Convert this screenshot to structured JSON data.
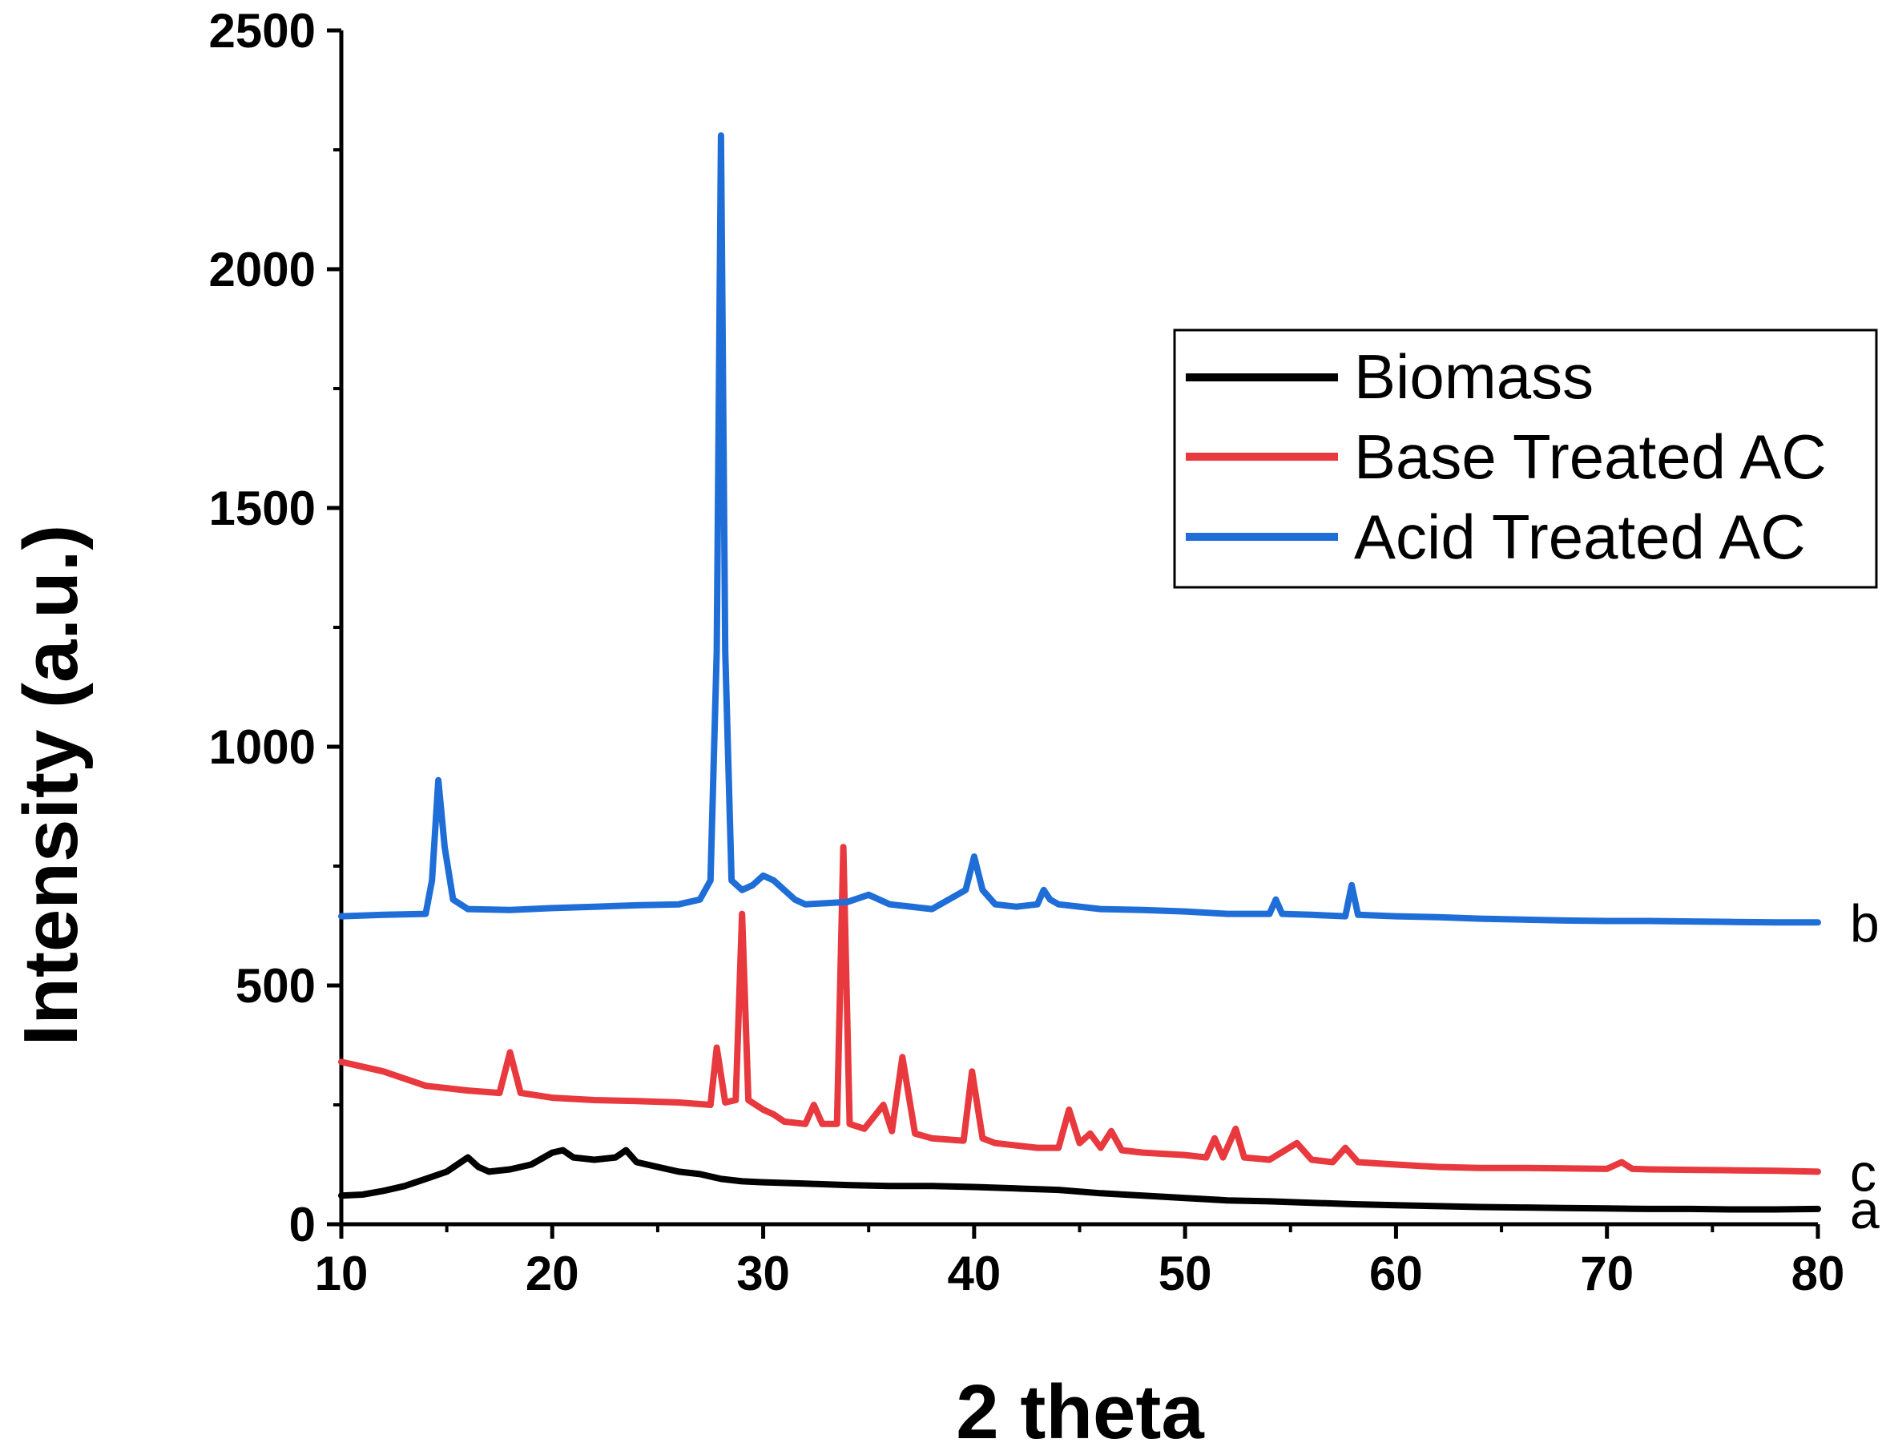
{
  "chart_data": {
    "type": "line",
    "title": "",
    "xlabel": "2 theta",
    "ylabel": "Intensity (a.u.)",
    "xlim": [
      10,
      80
    ],
    "ylim": [
      0,
      2500
    ],
    "xticks": [
      "10",
      "20",
      "30",
      "40",
      "50",
      "60",
      "70",
      "80"
    ],
    "yticks": [
      "0",
      "500",
      "1000",
      "1500",
      "2000",
      "2500"
    ],
    "legend_position": "top-right",
    "grid": false,
    "series": [
      {
        "name": "Biomass",
        "color": "#000000",
        "tag": "a",
        "x": [
          10,
          11,
          12,
          13,
          14,
          15,
          15.5,
          16,
          16.5,
          17,
          18,
          19,
          20,
          20.5,
          21,
          22,
          23,
          23.5,
          24,
          25,
          26,
          27,
          28,
          29,
          30,
          32,
          34,
          36,
          38,
          40,
          42,
          44,
          46,
          48,
          50,
          52,
          54,
          56,
          58,
          60,
          62,
          64,
          66,
          68,
          70,
          72,
          74,
          76,
          78,
          80
        ],
        "values": [
          60,
          62,
          70,
          80,
          95,
          110,
          125,
          140,
          120,
          110,
          115,
          125,
          150,
          155,
          140,
          135,
          140,
          155,
          130,
          120,
          110,
          105,
          95,
          90,
          88,
          85,
          82,
          80,
          80,
          78,
          75,
          72,
          65,
          60,
          55,
          50,
          48,
          45,
          42,
          40,
          38,
          36,
          35,
          34,
          33,
          32,
          32,
          31,
          31,
          32
        ]
      },
      {
        "name": "Base Treated AC",
        "color": "#e8393f",
        "tag": "c",
        "x": [
          10,
          10.5,
          12,
          14,
          16,
          17.5,
          18,
          18.5,
          20,
          22,
          24,
          26,
          27.5,
          27.8,
          28.2,
          28.7,
          29.0,
          29.3,
          30,
          30.5,
          31,
          32,
          32.4,
          32.8,
          33.5,
          33.8,
          34.1,
          34.8,
          35.7,
          36.1,
          36.6,
          37.2,
          38,
          39.5,
          39.9,
          40.4,
          41,
          42,
          43,
          44,
          44.5,
          45,
          45.5,
          46,
          46.5,
          47,
          48,
          50,
          51,
          51.4,
          51.8,
          52.4,
          52.8,
          54,
          55.3,
          56,
          57,
          57.6,
          58.2,
          60,
          62,
          64,
          66,
          68,
          70,
          70.7,
          71.2,
          72,
          74,
          76,
          78,
          80
        ],
        "values": [
          340,
          335,
          320,
          290,
          280,
          275,
          360,
          275,
          265,
          260,
          258,
          255,
          250,
          370,
          255,
          260,
          650,
          260,
          240,
          230,
          215,
          210,
          250,
          210,
          210,
          790,
          210,
          200,
          250,
          195,
          350,
          190,
          180,
          175,
          320,
          180,
          170,
          165,
          160,
          160,
          240,
          170,
          190,
          160,
          195,
          155,
          150,
          145,
          140,
          180,
          140,
          200,
          140,
          135,
          170,
          135,
          130,
          160,
          130,
          125,
          120,
          118,
          118,
          117,
          116,
          130,
          116,
          115,
          114,
          113,
          112,
          110
        ]
      },
      {
        "name": "Acid Treated AC",
        "color": "#1f6ed8",
        "tag": "b",
        "x": [
          10,
          12,
          14,
          14.3,
          14.6,
          14.9,
          15.3,
          16,
          18,
          20,
          22,
          24,
          26,
          27,
          27.5,
          27.8,
          28.0,
          28.2,
          28.5,
          29,
          29.5,
          30,
          30.5,
          31,
          31.5,
          32,
          34,
          35,
          36,
          38,
          39.6,
          40.0,
          40.4,
          41,
          42,
          43,
          43.3,
          43.6,
          44,
          46,
          48,
          50,
          52,
          54,
          54.3,
          54.6,
          56,
          57.6,
          57.9,
          58.2,
          60,
          62,
          64,
          66,
          68,
          70,
          72,
          74,
          76,
          78,
          80
        ],
        "values": [
          645,
          648,
          650,
          720,
          930,
          790,
          680,
          660,
          658,
          662,
          665,
          668,
          670,
          680,
          720,
          1200,
          2280,
          1200,
          720,
          700,
          710,
          730,
          720,
          700,
          680,
          670,
          675,
          690,
          670,
          660,
          700,
          770,
          700,
          670,
          665,
          670,
          700,
          680,
          670,
          660,
          658,
          655,
          650,
          650,
          680,
          650,
          648,
          645,
          710,
          648,
          645,
          643,
          640,
          638,
          636,
          635,
          635,
          634,
          633,
          632,
          632
        ]
      }
    ]
  }
}
